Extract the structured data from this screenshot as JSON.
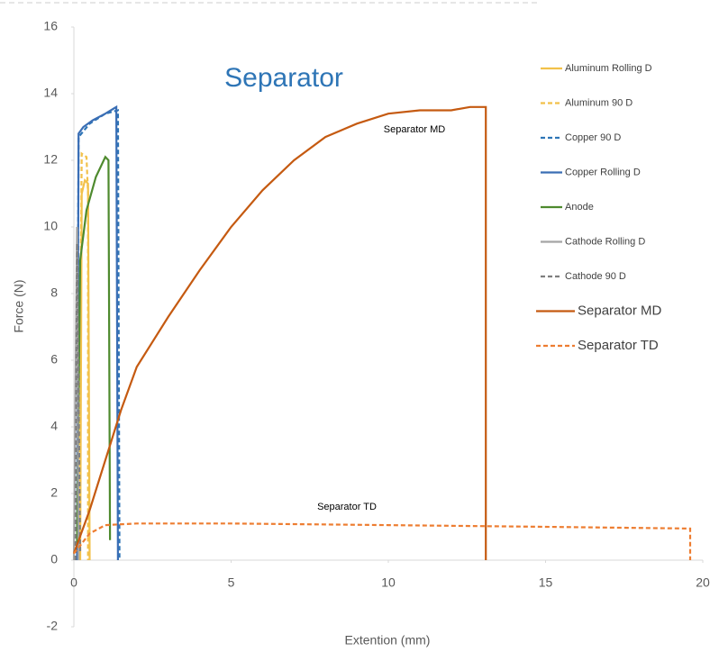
{
  "chart_data": {
    "type": "line",
    "title": "Separator",
    "x_label": "Extention (mm)",
    "y_label": "Force (N)",
    "xlim": [
      0,
      20
    ],
    "xticks": [
      0,
      5,
      10,
      15,
      20
    ],
    "ylim": [
      -2,
      16
    ],
    "yticks": [
      -2,
      0,
      2,
      4,
      6,
      8,
      10,
      12,
      14,
      16
    ],
    "grid": false,
    "legend": "right",
    "annotations": [
      "Separator MD",
      "Separator TD"
    ],
    "series": [
      {
        "name": "Aluminum Rolling D",
        "color": "#f2c14a",
        "dashed": false,
        "x": [
          0.2,
          0.25,
          0.35,
          0.45,
          0.5
        ],
        "values": [
          0,
          11,
          11.4,
          11.3,
          0
        ]
      },
      {
        "name": "Aluminum 90 D",
        "color": "#f2c14a",
        "dashed": true,
        "x": [
          0.15,
          0.25,
          0.4,
          0.45,
          0.45
        ],
        "values": [
          0,
          12.2,
          12.1,
          11,
          0
        ]
      },
      {
        "name": "Copper 90 D",
        "color": "#2e75b6",
        "dashed": true,
        "x": [
          0.1,
          0.15,
          0.5,
          1,
          1.4,
          1.45
        ],
        "values": [
          0,
          12.7,
          13.1,
          13.4,
          13.5,
          0
        ]
      },
      {
        "name": "Copper Rolling D",
        "color": "#3a6eb5",
        "dashed": false,
        "x": [
          0.1,
          0.15,
          0.3,
          0.6,
          1,
          1.35,
          1.4
        ],
        "values": [
          0,
          12.8,
          13,
          13.2,
          13.4,
          13.6,
          0
        ]
      },
      {
        "name": "Anode",
        "color": "#4e8a2e",
        "dashed": false,
        "x": [
          0.1,
          0.2,
          0.4,
          0.7,
          1,
          1.1,
          1.15
        ],
        "values": [
          0.5,
          9,
          10.5,
          11.5,
          12.1,
          12,
          0.6
        ]
      },
      {
        "name": "Cathode Rolling D",
        "color": "#a5a5a5",
        "dashed": false,
        "x": [
          0,
          0.1,
          0.15
        ],
        "values": [
          0,
          10,
          0
        ]
      },
      {
        "name": "Cathode 90 D",
        "color": "#7f7f7f",
        "dashed": true,
        "x": [
          0.05,
          0.1,
          0.2
        ],
        "values": [
          0,
          9.5,
          0.2
        ]
      },
      {
        "name": "Separator MD",
        "color": "#c55a11",
        "dashed": false,
        "x": [
          0,
          0.5,
          1,
          1.5,
          2,
          3,
          4,
          5,
          6,
          7,
          8,
          9,
          10,
          11,
          12,
          12.6,
          13.1,
          13.1
        ],
        "values": [
          0.2,
          1.5,
          3,
          4.5,
          5.8,
          7.3,
          8.7,
          10,
          11.1,
          12,
          12.7,
          13.1,
          13.4,
          13.5,
          13.5,
          13.6,
          13.6,
          0
        ]
      },
      {
        "name": "Separator TD",
        "color": "#ed7d31",
        "dashed": true,
        "x": [
          0,
          0.5,
          1,
          2,
          5,
          10,
          15,
          19.6,
          19.6
        ],
        "values": [
          0.2,
          0.8,
          1.05,
          1.1,
          1.1,
          1.05,
          1.0,
          0.95,
          0
        ]
      }
    ]
  }
}
